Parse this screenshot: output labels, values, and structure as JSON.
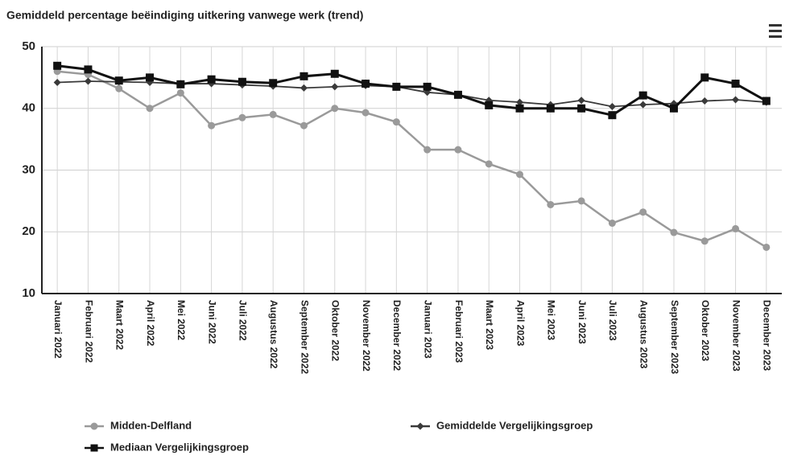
{
  "chart_data": {
    "type": "line",
    "title": "Gemiddeld percentage beëindiging uitkering vanwege werk (trend)",
    "categories": [
      "Januari 2022",
      "Februari 2022",
      "Maart 2022",
      "April 2022",
      "Mei 2022",
      "Juni 2022",
      "Juli 2022",
      "Augustus 2022",
      "September 2022",
      "Oktober 2022",
      "November 2022",
      "December 2022",
      "Januari 2023",
      "Februari 2023",
      "Maart 2023",
      "April 2023",
      "Mei 2023",
      "Juni 2023",
      "Juli 2023",
      "Augustus 2023",
      "September 2023",
      "Oktober 2023",
      "November 2023",
      "December 2023"
    ],
    "series": [
      {
        "name": "Midden-Delfland",
        "color": "#9a9a9a",
        "marker": "circle",
        "values": [
          46,
          45.5,
          43.2,
          40,
          42.5,
          37.2,
          38.5,
          39,
          37.2,
          40,
          39.3,
          37.8,
          33.3,
          33.3,
          31,
          29.3,
          24.4,
          25,
          21.4,
          23.2,
          19.9,
          18.5,
          20.5,
          17.5
        ]
      },
      {
        "name": "Gemiddelde Vergelijkingsgroep",
        "color": "#3a3a3a",
        "marker": "diamond",
        "values": [
          44.2,
          44.4,
          44.3,
          44.2,
          44,
          44,
          43.8,
          43.6,
          43.3,
          43.5,
          43.7,
          43.5,
          42.6,
          42.2,
          41.3,
          41,
          40.6,
          41.3,
          40.3,
          40.6,
          40.8,
          41.2,
          41.4,
          41
        ]
      },
      {
        "name": "Mediaan Vergelijkingsgroep",
        "color": "#111111",
        "marker": "square",
        "values": [
          46.9,
          46.3,
          44.5,
          45,
          43.9,
          44.7,
          44.3,
          44.1,
          45.2,
          45.6,
          44,
          43.5,
          43.5,
          42.2,
          40.5,
          40,
          40,
          40,
          38.9,
          42.1,
          40,
          45,
          44,
          41.2
        ]
      }
    ],
    "ylim": [
      10,
      50
    ],
    "yticks": [
      10,
      20,
      30,
      40,
      50
    ],
    "grid": true
  }
}
